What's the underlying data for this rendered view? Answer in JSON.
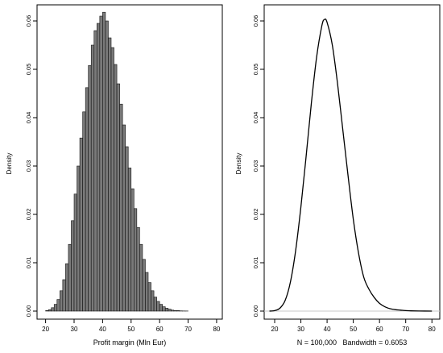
{
  "chart_data": [
    {
      "type": "bar",
      "subtype": "histogram",
      "title": "",
      "xlabel": "Profit margin (Mln Eur)",
      "ylabel": "Density",
      "xlim": [
        17,
        82
      ],
      "ylim": [
        0,
        0.062
      ],
      "x_ticks": [
        20,
        30,
        40,
        50,
        60,
        70,
        80
      ],
      "y_ticks": [
        0.0,
        0.01,
        0.02,
        0.03,
        0.04,
        0.05,
        0.06
      ],
      "y_tick_labels": [
        "0.00",
        "0.01",
        "0.02",
        "0.03",
        "0.04",
        "0.05",
        "0.06"
      ],
      "bin_width": 1,
      "bin_start": 20,
      "values": [
        0.0001,
        0.0003,
        0.0007,
        0.0014,
        0.0024,
        0.0042,
        0.0065,
        0.0098,
        0.0138,
        0.0187,
        0.0242,
        0.03,
        0.0358,
        0.0412,
        0.0462,
        0.0508,
        0.055,
        0.058,
        0.0595,
        0.061,
        0.0618,
        0.06,
        0.0565,
        0.0545,
        0.051,
        0.047,
        0.0428,
        0.0385,
        0.034,
        0.0296,
        0.0253,
        0.0212,
        0.0173,
        0.0138,
        0.0107,
        0.008,
        0.0059,
        0.0042,
        0.0029,
        0.002,
        0.0014,
        0.0009,
        0.0006,
        0.0004,
        0.0002,
        0.0001,
        0.0001,
        5e-05,
        3e-05,
        2e-05
      ]
    },
    {
      "type": "line",
      "subtype": "density",
      "title": "",
      "xlabel": "N = 100,000   Bandwidth = 0.6053",
      "ylabel": "Density",
      "xlim": [
        16,
        83
      ],
      "ylim": [
        0,
        0.062
      ],
      "x_ticks": [
        20,
        30,
        40,
        50,
        60,
        70,
        80
      ],
      "y_ticks": [
        0.0,
        0.01,
        0.02,
        0.03,
        0.04,
        0.05,
        0.06
      ],
      "y_tick_labels": [
        "0.00",
        "0.01",
        "0.02",
        "0.03",
        "0.04",
        "0.05",
        "0.06"
      ],
      "x": [
        18,
        20,
        22,
        24,
        26,
        28,
        30,
        32,
        34,
        36,
        38,
        39,
        40,
        42,
        44,
        46,
        48,
        50,
        52,
        54,
        56,
        58,
        60,
        62,
        64,
        66,
        68,
        70,
        72,
        75,
        80
      ],
      "y": [
        0.0,
        0.0001,
        0.0006,
        0.0022,
        0.006,
        0.0125,
        0.0215,
        0.032,
        0.043,
        0.0525,
        0.059,
        0.0603,
        0.0597,
        0.055,
        0.047,
        0.0375,
        0.028,
        0.019,
        0.012,
        0.007,
        0.0045,
        0.0028,
        0.0016,
        0.0009,
        0.0005,
        0.0003,
        0.0002,
        0.0001,
        5e-05,
        2e-05,
        0.0
      ]
    }
  ]
}
